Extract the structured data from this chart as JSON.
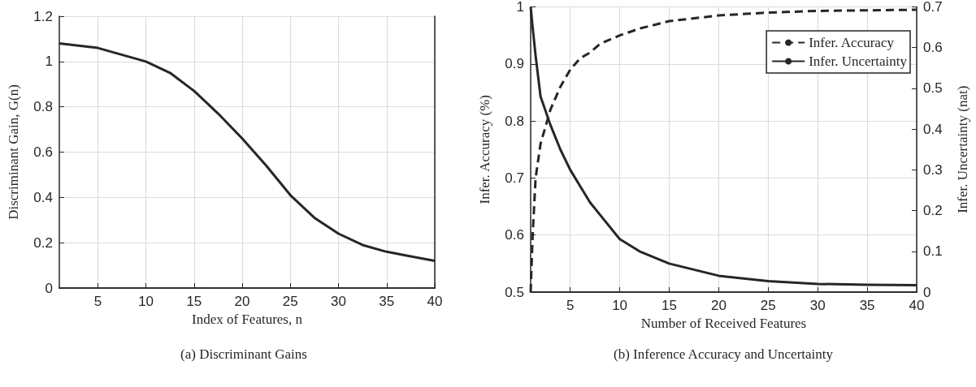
{
  "chart_data": [
    {
      "type": "line",
      "xlabel": "Index of Features, n",
      "ylabel": "Discriminant Gain, G(n)",
      "annotations": [
        "(a) Discriminant Gains"
      ],
      "x": [
        1,
        5,
        10,
        12.5,
        15,
        17.5,
        20,
        22.5,
        25,
        27.5,
        30,
        32.5,
        35,
        37.5,
        40
      ],
      "series": [
        {
          "color": "#262626",
          "values": [
            1.08,
            1.06,
            1.0,
            0.95,
            0.87,
            0.77,
            0.66,
            0.54,
            0.41,
            0.31,
            0.24,
            0.19,
            0.16,
            0.14,
            0.12
          ]
        }
      ],
      "xlim": [
        1,
        40
      ],
      "xticks": [
        5,
        10,
        15,
        20,
        25,
        30,
        35,
        40
      ],
      "ylim": [
        0,
        1.2
      ],
      "yticks": [
        0,
        0.2,
        0.4,
        0.6,
        0.8,
        1,
        1.2
      ],
      "grid": true,
      "marker": "none",
      "line_style": "solid"
    },
    {
      "type": "line",
      "xlabel": "Number of Received Features",
      "ylabel": "Infer. Accuracy (%)",
      "y2label": "Infer. Uncertainty (nat)",
      "annotations": [
        "(b) Inference Accuracy and Uncertainty"
      ],
      "x": [
        1,
        1.2,
        1.5,
        2,
        3,
        4,
        5,
        6,
        7,
        8,
        10,
        12,
        15,
        20,
        25,
        30,
        35,
        40
      ],
      "series": [
        {
          "name": "Infer. Accuracy",
          "color": "#262626",
          "line_style": "dashed",
          "values": [
            0.5,
            0.6,
            0.7,
            0.76,
            0.82,
            0.86,
            0.89,
            0.91,
            0.92,
            0.935,
            0.95,
            0.962,
            0.975,
            0.985,
            0.99,
            0.993,
            0.994,
            0.995
          ]
        },
        {
          "name": "Infer. Uncertainty",
          "color": "#262626",
          "line_style": "solid",
          "axis": "y2",
          "values": [
            0.7,
            0.65,
            0.58,
            0.48,
            0.41,
            0.35,
            0.3,
            0.26,
            0.22,
            0.19,
            0.13,
            0.1,
            0.07,
            0.04,
            0.027,
            0.02,
            0.018,
            0.017
          ]
        }
      ],
      "xlim": [
        1,
        40
      ],
      "xticks": [
        5,
        10,
        15,
        20,
        25,
        30,
        35,
        40
      ],
      "ylim": [
        0.5,
        1
      ],
      "yticks": [
        0.5,
        0.6,
        0.7,
        0.8,
        0.9,
        1
      ],
      "y2lim": [
        0,
        0.7
      ],
      "y2ticks": [
        0,
        0.1,
        0.2,
        0.3,
        0.4,
        0.5,
        0.6,
        0.7
      ],
      "grid": true,
      "legend": "top right",
      "marker": "none"
    }
  ]
}
